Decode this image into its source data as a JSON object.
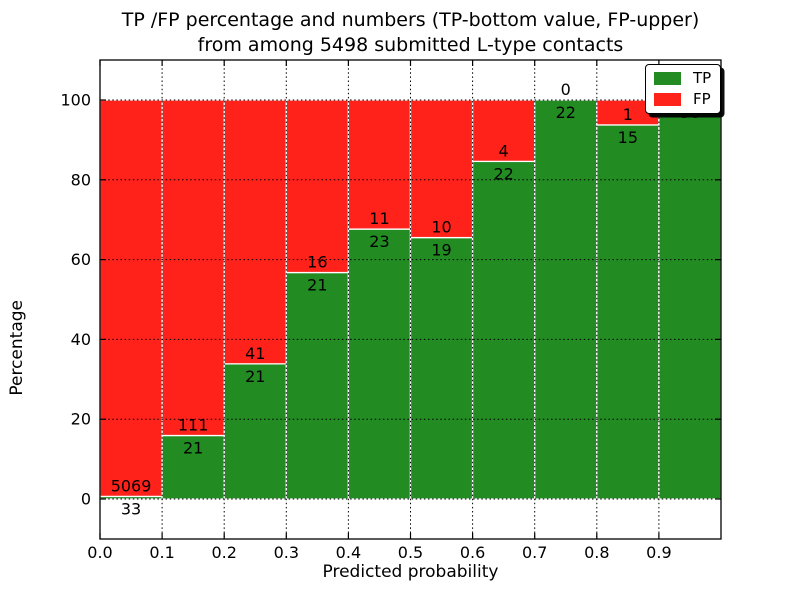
{
  "chart_data": {
    "type": "bar",
    "stacked": true,
    "title_line1": "TP /FP percentage and numbers (TP-bottom value, FP-upper)",
    "title_line2": "from among 5498 submitted L-type contacts",
    "xlabel": "Predicted probability",
    "ylabel": "Percentage",
    "total_submitted": 5498,
    "xlim": [
      0.0,
      1.0
    ],
    "ylim": [
      -10,
      110
    ],
    "x_tick_labels": [
      "0.0",
      "0.1",
      "0.2",
      "0.3",
      "0.4",
      "0.5",
      "0.6",
      "0.7",
      "0.8",
      "0.9"
    ],
    "y_tick_values": [
      0,
      20,
      40,
      60,
      80,
      100
    ],
    "y_tick_labels": [
      "0",
      "20",
      "40",
      "60",
      "80",
      "100"
    ],
    "grid": "dotted black, on",
    "bins": [
      {
        "x_start": 0.0,
        "x_end": 0.1,
        "tp": 33,
        "fp": 5069,
        "tp_pct": 0.65
      },
      {
        "x_start": 0.1,
        "x_end": 0.2,
        "tp": 21,
        "fp": 111,
        "tp_pct": 15.91
      },
      {
        "x_start": 0.2,
        "x_end": 0.3,
        "tp": 21,
        "fp": 41,
        "tp_pct": 33.87
      },
      {
        "x_start": 0.3,
        "x_end": 0.4,
        "tp": 21,
        "fp": 16,
        "tp_pct": 56.76
      },
      {
        "x_start": 0.4,
        "x_end": 0.5,
        "tp": 23,
        "fp": 11,
        "tp_pct": 67.65
      },
      {
        "x_start": 0.5,
        "x_end": 0.6,
        "tp": 19,
        "fp": 10,
        "tp_pct": 65.52
      },
      {
        "x_start": 0.6,
        "x_end": 0.7,
        "tp": 22,
        "fp": 4,
        "tp_pct": 84.62
      },
      {
        "x_start": 0.7,
        "x_end": 0.8,
        "tp": 22,
        "fp": 0,
        "tp_pct": 100.0
      },
      {
        "x_start": 0.8,
        "x_end": 0.9,
        "tp": 15,
        "fp": 1,
        "tp_pct": 93.75
      },
      {
        "x_start": 0.9,
        "x_end": 1.0,
        "tp": 38,
        "fp": 0,
        "tp_pct": 100.0
      }
    ],
    "labels_note": "Each bar stacks TP (green, bottom) and FP (red, top) to 100%; count labels: FP count just above green/red boundary, TP count just below it.",
    "colors": {
      "tp": "#228b22",
      "fp": "#fe221b",
      "grid": "#000000",
      "text": "#000000",
      "background": "#ffffff"
    },
    "legend": {
      "position": "upper right",
      "entries": [
        {
          "label": "TP",
          "color": "#228b22"
        },
        {
          "label": "FP",
          "color": "#fe221b"
        }
      ]
    }
  }
}
